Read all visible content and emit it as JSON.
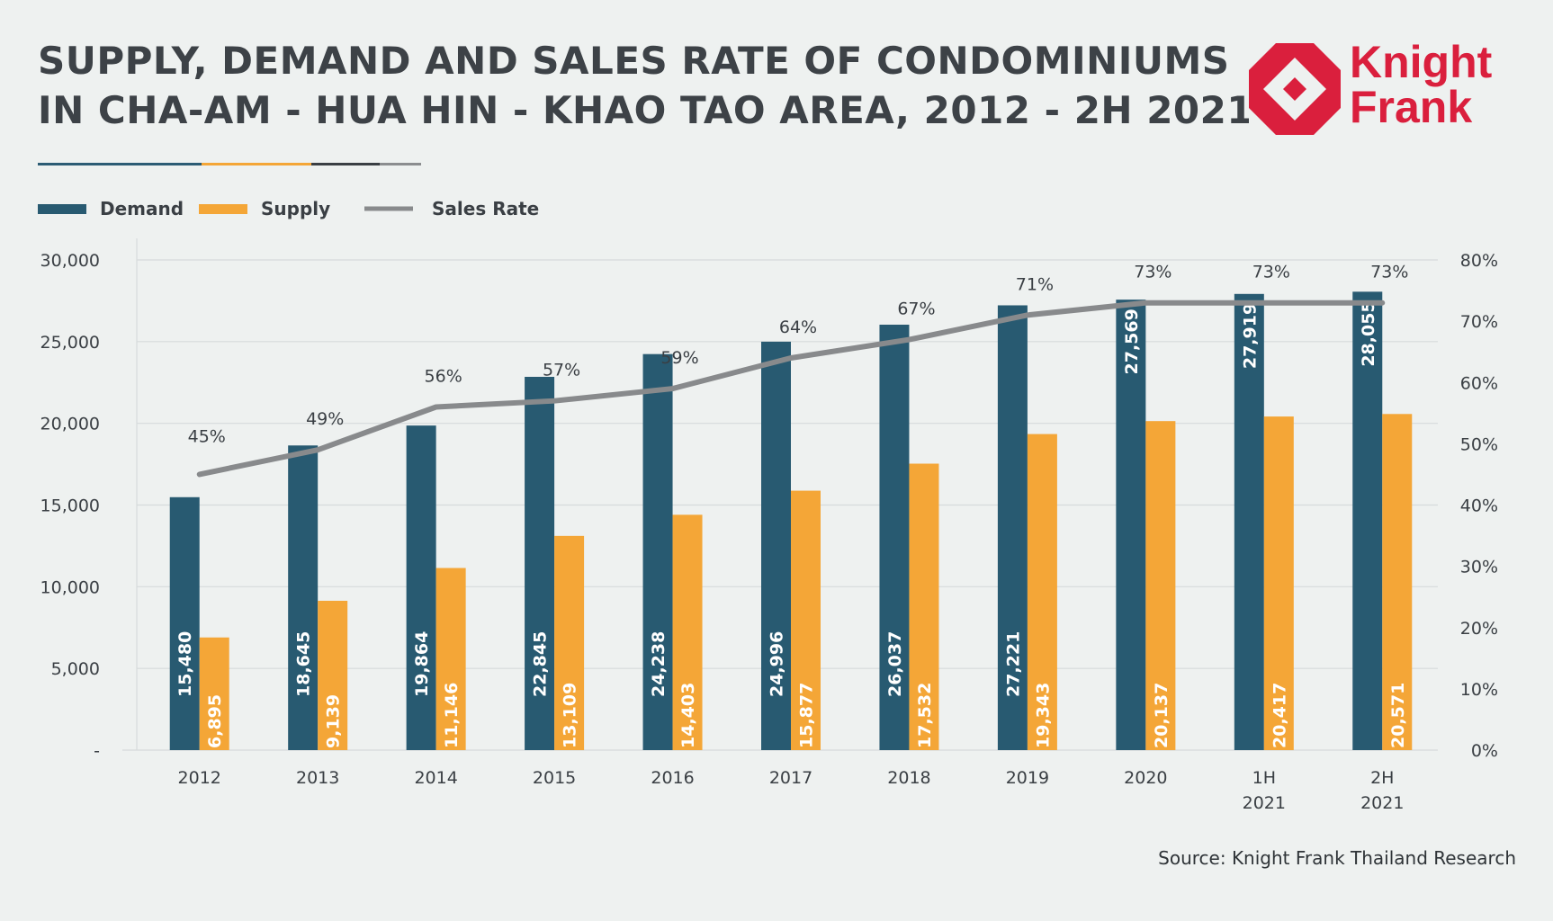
{
  "title_line1": "SUPPLY, DEMAND AND SALES RATE OF CONDOMINIUMS",
  "title_line2": "IN CHA-AM - HUA HIN - KHAO TAO AREA, 2012 - 2H 2021",
  "logo": {
    "line1": "Knight",
    "line2": "Frank",
    "color": "#da1f3d"
  },
  "source": "Source: Knight Frank Thailand Research",
  "colors": {
    "demand": "#285a71",
    "supply": "#f4a637",
    "sales": "#888a8c",
    "grid": "#d6dadb",
    "text": "#3a3f44"
  },
  "underline_colors": [
    "#2c5c74",
    "#f4a637",
    "#3a3f44",
    "#8b8d8f"
  ],
  "chart_data": {
    "type": "bar",
    "categories": [
      "2012",
      "2013",
      "2014",
      "2015",
      "2016",
      "2017",
      "2018",
      "2019",
      "2020",
      "1H 2021",
      "2H 2021"
    ],
    "series": [
      {
        "name": "Demand",
        "kind": "bar",
        "axis": "left",
        "values": [
          15480,
          18645,
          19864,
          22845,
          24238,
          24996,
          26037,
          27221,
          27569,
          27919,
          28055
        ],
        "labels": [
          "15,480",
          "18,645",
          "19,864",
          "22,845",
          "24,238",
          "24,996",
          "26,037",
          "27,221",
          "27,569",
          "27,919",
          "28,055"
        ]
      },
      {
        "name": "Supply",
        "kind": "bar",
        "axis": "left",
        "values": [
          6895,
          9139,
          11146,
          13109,
          14403,
          15877,
          17532,
          19343,
          20137,
          20417,
          20571
        ],
        "labels": [
          "6,895",
          "9,139",
          "11,146",
          "13,109",
          "14,403",
          "15,877",
          "17,532",
          "19,343",
          "20,137",
          "20,417",
          "20,571"
        ]
      },
      {
        "name": "Sales Rate",
        "kind": "line",
        "axis": "right",
        "values": [
          45,
          49,
          56,
          57,
          59,
          64,
          67,
          71,
          73,
          73,
          73
        ],
        "labels": [
          "45%",
          "49%",
          "56%",
          "57%",
          "59%",
          "64%",
          "67%",
          "71%",
          "73%",
          "73%",
          "73%"
        ]
      }
    ],
    "legend": [
      "Demand",
      "Supply",
      "Sales Rate"
    ],
    "yleft": {
      "min": 0,
      "max": 30000,
      "ticks": [
        "-",
        "5,000",
        "10,000",
        "15,000",
        "20,000",
        "25,000",
        "30,000"
      ]
    },
    "yright": {
      "min": 0,
      "max": 80,
      "ticks": [
        "0%",
        "10%",
        "20%",
        "30%",
        "40%",
        "50%",
        "60%",
        "70%",
        "80%"
      ]
    },
    "xlabel": "",
    "ylabel": "",
    "grid": true
  }
}
